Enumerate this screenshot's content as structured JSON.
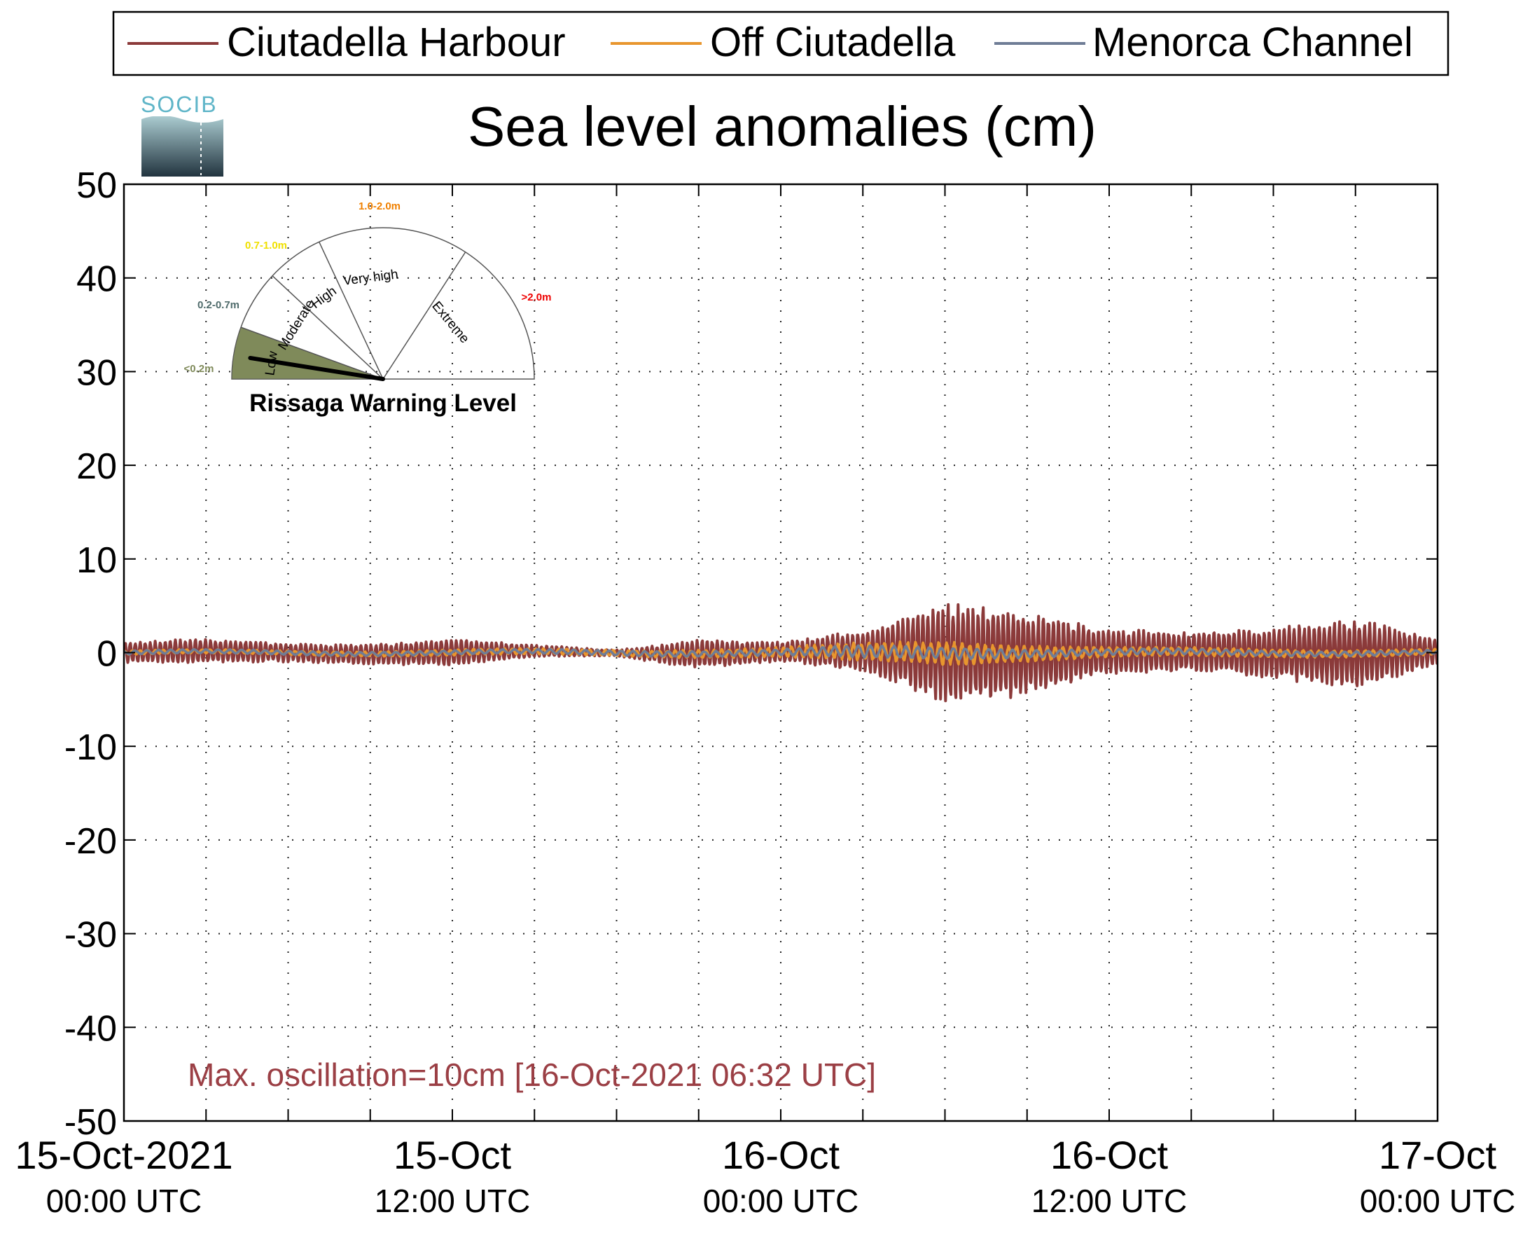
{
  "legend": [
    {
      "label": "Ciutadella Harbour",
      "color": "#8b3a3a"
    },
    {
      "label": "Off Ciutadella",
      "color": "#e8962e"
    },
    {
      "label": "Menorca Channel",
      "color": "#6f7d96"
    }
  ],
  "logo": {
    "text": "SOCIB"
  },
  "chart_data": {
    "type": "line",
    "title": "Sea level anomalies (cm)",
    "xlabel": "",
    "ylabel": "",
    "ylim": [
      -50,
      50
    ],
    "yticks": [
      50,
      40,
      30,
      20,
      10,
      0,
      -10,
      -20,
      -30,
      -40,
      -50
    ],
    "xlim": [
      "2021-10-15T00:00Z",
      "2021-10-17T00:00Z"
    ],
    "xticks": [
      {
        "line1": "15-Oct-2021",
        "line2": "00:00 UTC"
      },
      {
        "line1": "15-Oct",
        "line2": "12:00 UTC"
      },
      {
        "line1": "16-Oct",
        "line2": "00:00 UTC"
      },
      {
        "line1": "16-Oct",
        "line2": "12:00 UTC"
      },
      {
        "line1": "17-Oct",
        "line2": "00:00 UTC"
      }
    ],
    "grid": true,
    "legend_position": "top",
    "series": [
      {
        "name": "Ciutadella Harbour",
        "color": "#8b3a3a",
        "x": [
          "2021-10-15T00:00Z",
          "2021-10-15T03:00Z",
          "2021-10-15T06:00Z",
          "2021-10-15T09:00Z",
          "2021-10-15T12:00Z",
          "2021-10-15T15:00Z",
          "2021-10-15T18:00Z",
          "2021-10-15T21:00Z",
          "2021-10-16T00:00Z",
          "2021-10-16T03:00Z",
          "2021-10-16T06:00Z",
          "2021-10-16T09:00Z",
          "2021-10-16T12:00Z",
          "2021-10-16T15:00Z",
          "2021-10-16T18:00Z",
          "2021-10-16T21:00Z",
          "2021-10-17T00:00Z"
        ],
        "amplitude": [
          1.0,
          1.2,
          0.9,
          1.0,
          1.3,
          0.6,
          0.3,
          1.4,
          1.0,
          2.0,
          5.0,
          4.2,
          2.2,
          2.0,
          2.5,
          3.5,
          1.2
        ]
      },
      {
        "name": "Off Ciutadella",
        "color": "#e8962e",
        "x": [
          "2021-10-15T00:00Z",
          "2021-10-15T06:00Z",
          "2021-10-15T12:00Z",
          "2021-10-15T18:00Z",
          "2021-10-16T00:00Z",
          "2021-10-16T03:00Z",
          "2021-10-16T06:00Z",
          "2021-10-16T09:00Z",
          "2021-10-16T12:00Z",
          "2021-10-16T18:00Z",
          "2021-10-17T00:00Z"
        ],
        "amplitude": [
          0.2,
          0.2,
          0.3,
          0.3,
          0.5,
          0.9,
          1.2,
          0.8,
          0.5,
          0.4,
          0.3
        ]
      },
      {
        "name": "Menorca Channel",
        "color": "#6f7d96",
        "x": [
          "2021-10-15T00:00Z",
          "2021-10-15T12:00Z",
          "2021-10-16T00:00Z",
          "2021-10-16T03:00Z",
          "2021-10-16T06:00Z",
          "2021-10-16T09:00Z",
          "2021-10-16T12:00Z",
          "2021-10-17T00:00Z"
        ],
        "amplitude": [
          0.2,
          0.2,
          0.3,
          0.6,
          0.6,
          0.4,
          0.3,
          0.2
        ]
      }
    ],
    "annotation": "Max. oscillation=10cm [16-Oct-2021 06:32 UTC]",
    "annotation_color": "#9b3f45"
  },
  "gauge": {
    "title": "Rissaga Warning Level",
    "current_level": "Low",
    "levels": [
      {
        "name": "Low",
        "range": "<0.2m",
        "color": "#7f8a5a"
      },
      {
        "name": "Moderate",
        "range": "0.2-0.7m",
        "color": "#4f6b6b"
      },
      {
        "name": "High",
        "range": "0.7-1.0m",
        "color": "#f0e000"
      },
      {
        "name": "Very high",
        "range": "1.0-2.0m",
        "color": "#f08000"
      },
      {
        "name": "Extreme",
        "range": ">2.0m",
        "color": "#ee0000"
      }
    ]
  }
}
